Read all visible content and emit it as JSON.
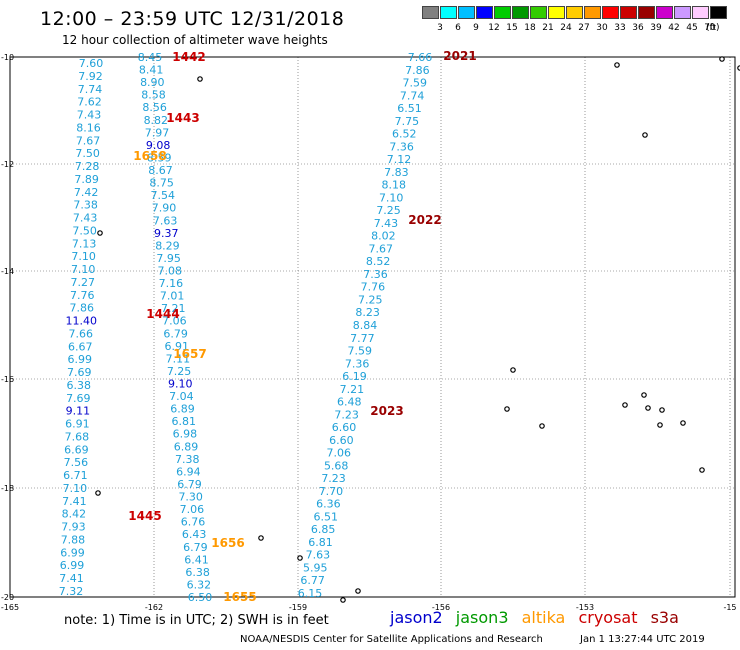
{
  "header": {
    "title": "12:00 – 23:59 UTC 12/31/2018",
    "subtitle": "12 hour collection of altimeter wave heights"
  },
  "colorbar": {
    "unit": "(ft)",
    "colors": [
      "#808080",
      "#00ffff",
      "#00bfff",
      "#0000ff",
      "#00cc00",
      "#009900",
      "#33cc00",
      "#ffff00",
      "#ffcc00",
      "#ff9900",
      "#ff0000",
      "#cc0000",
      "#990000",
      "#cc00cc",
      "#cc99ff",
      "#ffccff",
      "#000000"
    ],
    "labels": [
      "3",
      "6",
      "9",
      "12",
      "15",
      "18",
      "21",
      "24",
      "27",
      "30",
      "33",
      "36",
      "39",
      "42",
      "45",
      "70"
    ]
  },
  "map": {
    "lon_labels": [
      "-165",
      "-162",
      "-159",
      "-156",
      "-153",
      "-15"
    ],
    "lat_labels": [
      "-10",
      "-12",
      "-14",
      "-16",
      "-18",
      "-20"
    ]
  },
  "colors": {
    "jason2": "#0000cc",
    "jason3": "#009900",
    "altika": "#ff9900",
    "cryosat": "#cc0000",
    "s3a": "#990000",
    "cyan": "#1fa0d8"
  },
  "pass_labels": [
    {
      "text": "1442",
      "sat": "cryosat"
    },
    {
      "text": "1443",
      "sat": "cryosat"
    },
    {
      "text": "1658",
      "sat": "altika"
    },
    {
      "text": "1444",
      "sat": "cryosat"
    },
    {
      "text": "1657",
      "sat": "altika"
    },
    {
      "text": "1445",
      "sat": "cryosat"
    },
    {
      "text": "1656",
      "sat": "altika"
    },
    {
      "text": "1655",
      "sat": "altika"
    },
    {
      "text": "2021",
      "sat": "s3a"
    },
    {
      "text": "2022",
      "sat": "s3a"
    },
    {
      "text": "2023",
      "sat": "s3a"
    }
  ],
  "tracks": {
    "a": [
      "7.60",
      "7.92",
      "7.74",
      "7.62",
      "7.43",
      "8.16",
      "7.67",
      "7.50",
      "7.28",
      "7.89",
      "7.42",
      "7.38",
      "7.43",
      "7.50",
      "7.13",
      "7.10",
      "7.10",
      "7.27",
      "7.76",
      "7.86",
      "11.40",
      "7.66",
      "6.67",
      "6.99",
      "7.69",
      "6.38",
      "7.69",
      "9.11",
      "6.91",
      "7.68",
      "6.69",
      "7.56",
      "6.71",
      "7.10",
      "7.41",
      "8.42",
      "7.93",
      "7.88",
      "6.99",
      "6.99",
      "7.41",
      "7.32"
    ],
    "b": [
      "8.45",
      "8.41",
      "8.90",
      "8.58",
      "8.56",
      "8.82",
      "7.97",
      "9.08",
      "8.59",
      "8.67",
      "8.75",
      "7.54",
      "7.90",
      "7.63",
      "9.37",
      "8.29",
      "7.95",
      "7.08",
      "7.16",
      "7.01",
      "7.21",
      "7.06",
      "6.79",
      "6.91",
      "7.11",
      "7.25",
      "9.10",
      "7.04",
      "6.89",
      "6.81",
      "6.98",
      "6.89",
      "7.38",
      "6.94",
      "6.79",
      "7.30",
      "7.06",
      "6.76",
      "6.43",
      "6.79",
      "6.41",
      "6.38",
      "6.32",
      "6.50"
    ],
    "c": [
      "7.66",
      "7.86",
      "7.59",
      "7.74",
      "6.51",
      "7.75",
      "6.52",
      "7.36",
      "7.12",
      "7.83",
      "8.18",
      "7.10",
      "7.25",
      "7.43",
      "8.02",
      "7.67",
      "8.52",
      "7.36",
      "7.76",
      "7.25",
      "8.23",
      "8.84",
      "7.77",
      "7.59",
      "7.36",
      "6.19",
      "7.21",
      "6.48",
      "7.23",
      "6.60",
      "6.60",
      "7.06",
      "5.68",
      "7.23",
      "7.70",
      "6.36",
      "6.51",
      "6.85",
      "6.81",
      "7.63",
      "5.95",
      "6.77",
      "6.15"
    ]
  },
  "footer": {
    "note": "note: 1) Time is in UTC; 2) SWH is in feet",
    "legend": {
      "jason2": "jason2",
      "jason3": "jason3",
      "altika": "altika",
      "cryosat": "cryosat",
      "s3a": "s3a"
    },
    "credit": "NOAA/NESDIS Center for Satellite Applications and Research",
    "timestamp": "Jan  1 13:27:44 UTC 2019"
  }
}
